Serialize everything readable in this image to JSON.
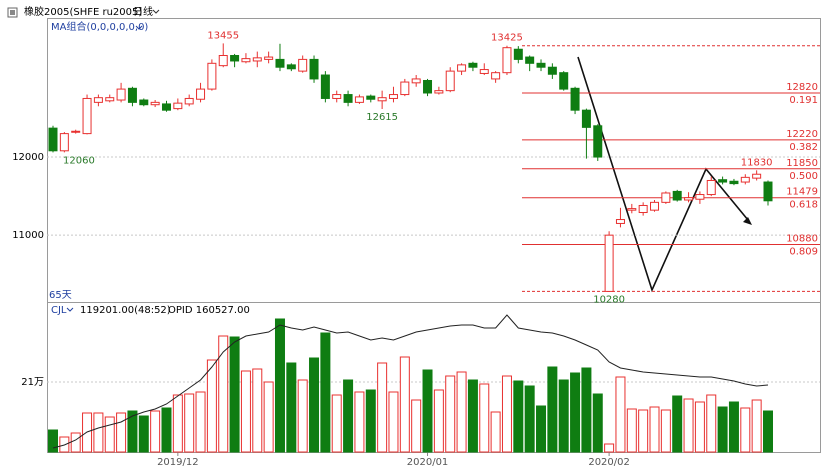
{
  "chart_data": [
    {
      "type": "candlestick",
      "title": "橡胶2005(SHFE ru2005)",
      "period": "日线",
      "subtitle": "MA组合(0,0,0,0,0,0)",
      "note": "65天",
      "up_color": "#e8302f",
      "down_color": "#0f7d12",
      "categories": [
        null,
        null,
        null,
        null,
        null,
        null,
        null,
        null,
        null,
        null,
        null,
        "2019/12",
        null,
        null,
        null,
        null,
        null,
        null,
        null,
        null,
        null,
        null,
        null,
        null,
        null,
        null,
        null,
        null,
        null,
        null,
        null,
        null,
        null,
        "2020/01",
        null,
        null,
        null,
        null,
        null,
        null,
        null,
        null,
        null,
        null,
        null,
        null,
        null,
        null,
        null,
        "2020/02",
        null,
        null,
        null,
        null,
        null,
        null,
        null,
        null,
        null,
        null,
        null,
        null,
        null,
        null
      ],
      "open": [
        12370,
        12080,
        12320,
        12300,
        12700,
        12720,
        12730,
        12880,
        12730,
        12670,
        12680,
        12620,
        12680,
        12740,
        12870,
        13170,
        13300,
        13220,
        13230,
        13250,
        13250,
        13180,
        13100,
        13250,
        13050,
        12750,
        12800,
        12700,
        12780,
        12720,
        12750,
        12800,
        12950,
        12980,
        12820,
        12850,
        13100,
        13200,
        13070,
        13000,
        13080,
        13380,
        13280,
        13200,
        13150,
        13080,
        12880,
        12600,
        12400,
        10280,
        11150,
        11320,
        11290,
        11320,
        11420,
        11560,
        11450,
        11460,
        11520,
        11710,
        11690,
        11680,
        11730,
        11680
      ],
      "high": [
        12400,
        12320,
        12350,
        12800,
        12800,
        12800,
        12950,
        12900,
        12750,
        12730,
        12720,
        12750,
        12800,
        12950,
        13250,
        13455,
        13320,
        13330,
        13350,
        13350,
        13450,
        13200,
        13300,
        13300,
        13100,
        12850,
        12850,
        12800,
        12800,
        12850,
        12900,
        13000,
        13050,
        13000,
        12900,
        13150,
        13200,
        13220,
        13200,
        13100,
        13425,
        13420,
        13300,
        13250,
        13200,
        13100,
        12900,
        12620,
        12420,
        11050,
        11350,
        11400,
        11420,
        11450,
        11560,
        11580,
        11550,
        11560,
        11750,
        11750,
        11720,
        11780,
        11830,
        11700
      ],
      "low": [
        12060,
        12060,
        12300,
        12290,
        12650,
        12700,
        12700,
        12650,
        12650,
        12640,
        12580,
        12600,
        12650,
        12700,
        12850,
        13150,
        13150,
        13200,
        13150,
        13200,
        13100,
        13100,
        13080,
        12950,
        12700,
        12700,
        12650,
        12680,
        12700,
        12615,
        12700,
        12780,
        12900,
        12780,
        12800,
        12830,
        13050,
        13100,
        13050,
        12950,
        13050,
        13200,
        13100,
        13100,
        13000,
        12850,
        12550,
        11980,
        11950,
        10280,
        11100,
        11280,
        11250,
        11300,
        11400,
        11430,
        11420,
        11400,
        11500,
        11650,
        11640,
        11650,
        11700,
        11380
      ],
      "close": [
        12080,
        12300,
        12330,
        12750,
        12760,
        12760,
        12870,
        12700,
        12670,
        12700,
        12600,
        12690,
        12750,
        12870,
        13200,
        13300,
        13230,
        13260,
        13270,
        13280,
        13150,
        13130,
        13250,
        13000,
        12750,
        12800,
        12700,
        12770,
        12740,
        12760,
        12800,
        12960,
        13000,
        12820,
        12850,
        13100,
        13180,
        13150,
        13120,
        13080,
        13400,
        13250,
        13200,
        13150,
        13060,
        12870,
        12600,
        12380,
        12000,
        11000,
        11200,
        11340,
        11380,
        11420,
        11540,
        11450,
        11480,
        11520,
        11700,
        11680,
        11660,
        11740,
        11780,
        11440
      ],
      "annotations": [
        13455,
        13425,
        12615,
        12060,
        10280,
        11830
      ],
      "fib_levels": [
        {
          "price": 13425,
          "ratio": null
        },
        {
          "price": 12820,
          "ratio": 0.191
        },
        {
          "price": 12220,
          "ratio": 0.382
        },
        {
          "price": 11850,
          "ratio": {
            "value": 0.5,
            "label": "0.500"
          }
        },
        {
          "price": 11479,
          "ratio": 0.618
        },
        {
          "price": 10880,
          "ratio": 0.809
        },
        {
          "price": 10280,
          "ratio": null
        }
      ],
      "ylim": [
        10170,
        13780
      ],
      "yticks": [
        11000,
        12000
      ],
      "grid": true
    },
    {
      "type": "bar",
      "readout": [
        "119201.00(48:52)",
        "OPID 160527.00"
      ],
      "series": [
        {
          "name": "CJL",
          "values": [
            66000,
            45000,
            57000,
            117000,
            117000,
            105000,
            117000,
            123000,
            108000,
            123000,
            132000,
            171000,
            174000,
            180000,
            276000,
            348000,
            345000,
            243000,
            249000,
            210000,
            399000,
            267000,
            216000,
            282000,
            357000,
            171000,
            216000,
            180000,
            186000,
            267000,
            180000,
            285000,
            156000,
            246000,
            186000,
            228000,
            240000,
            216000,
            204000,
            120000,
            228000,
            213000,
            198000,
            138000,
            255000,
            216000,
            237000,
            252000,
            174000,
            24000,
            225000,
            129000,
            126000,
            135000,
            126000,
            168000,
            159000,
            150000,
            171000,
            135000,
            150000,
            132000,
            156000,
            123000
          ]
        },
        {
          "name": "OPID",
          "color": "#222222",
          "values": [
            12000,
            21000,
            36000,
            60000,
            72000,
            81000,
            90000,
            108000,
            120000,
            129000,
            144000,
            168000,
            192000,
            216000,
            255000,
            300000,
            330000,
            348000,
            354000,
            360000,
            381000,
            372000,
            366000,
            375000,
            366000,
            357000,
            360000,
            348000,
            336000,
            342000,
            336000,
            348000,
            360000,
            366000,
            372000,
            378000,
            381000,
            381000,
            372000,
            372000,
            411000,
            372000,
            366000,
            360000,
            357000,
            348000,
            336000,
            321000,
            306000,
            270000,
            252000,
            246000,
            240000,
            237000,
            234000,
            231000,
            228000,
            225000,
            225000,
            219000,
            213000,
            204000,
            198000,
            201000
          ]
        }
      ],
      "ylim": [
        0,
        441000
      ],
      "yticks": [
        {
          "value": 210000,
          "label": "21万"
        }
      ],
      "grid": true
    }
  ]
}
